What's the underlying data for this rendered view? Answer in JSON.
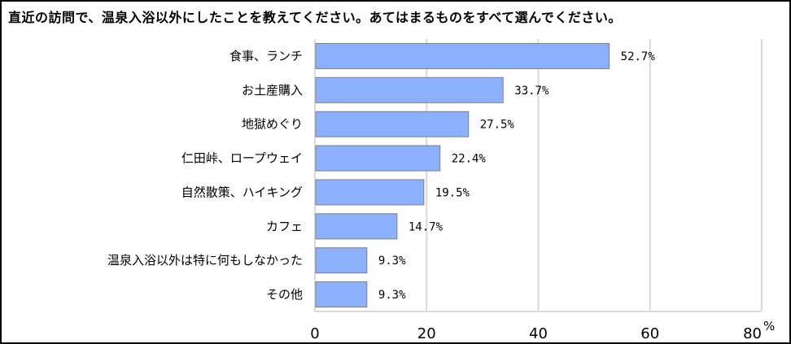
{
  "chart_data": {
    "type": "bar",
    "orientation": "horizontal",
    "title": "直近の訪問で、温泉入浴以外にしたことを教えてください。あてはまるものをすべて選んでください。",
    "categories": [
      "食事、ランチ",
      "お土産購入",
      "地獄めぐり",
      "仁田峠、ロープウェイ",
      "自然散策、ハイキング",
      "カフェ",
      "温泉入浴以外は特に何もしなかった",
      "その他"
    ],
    "values": [
      52.7,
      33.7,
      27.5,
      22.4,
      19.5,
      14.7,
      9.3,
      9.3
    ],
    "value_labels": [
      "52.7%",
      "33.7%",
      "27.5%",
      "22.4%",
      "19.5%",
      "14.7%",
      "9.3%",
      "9.3%"
    ],
    "xlim": [
      0,
      80
    ],
    "xticks": [
      "0",
      "20",
      "40",
      "60",
      "80"
    ],
    "x_unit": "%",
    "grid": true,
    "bar_color": "#8AB0FF",
    "bar_border": "#808080",
    "grid_color": "#D9D9D9"
  }
}
